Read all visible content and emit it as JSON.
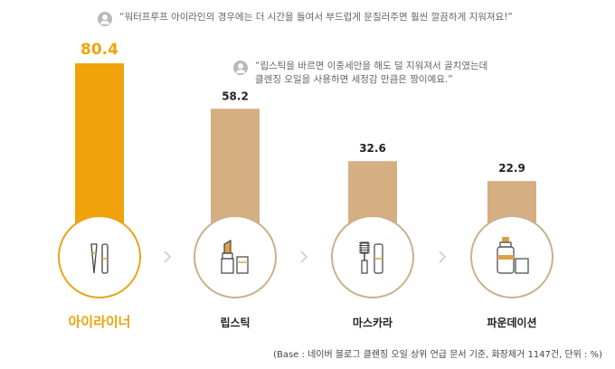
{
  "chart_data": {
    "type": "bar",
    "categories": [
      "아이라이너",
      "립스틱",
      "마스카라",
      "파운데이션"
    ],
    "values": [
      80.4,
      58.2,
      32.6,
      22.9
    ],
    "highlight_index": 0,
    "colors": {
      "highlight": "#f0a30a",
      "bar": "#d5ae82",
      "highlight_label": "#f0a30a",
      "label": "#222222",
      "circle_border_highlight": "#e8a317",
      "circle_border": "#c9b08c",
      "chevron": "#c8c8c8"
    },
    "ylim": [
      0,
      100
    ]
  },
  "quotes": [
    {
      "text": "“워터프루프 아이라인의 경우에는 더 시간을 들여서 부드럽게 문질러주면 훨씬 깔끔하게 지워져요!”"
    },
    {
      "text": "“립스틱을 바르면 이중세안을 해도 덜 지워져서 골치였는데\n클렌징 오일을 사용하면 세정감 만큼은 짱이예요.”"
    }
  ],
  "source": "(Base : 네이버 블로그 클렌징 오일 상위 언급 문서 기준, 화장제거 1147건, 단위 : %)",
  "icons": [
    "eyeliner-icon",
    "lipstick-icon",
    "mascara-icon",
    "foundation-icon"
  ]
}
